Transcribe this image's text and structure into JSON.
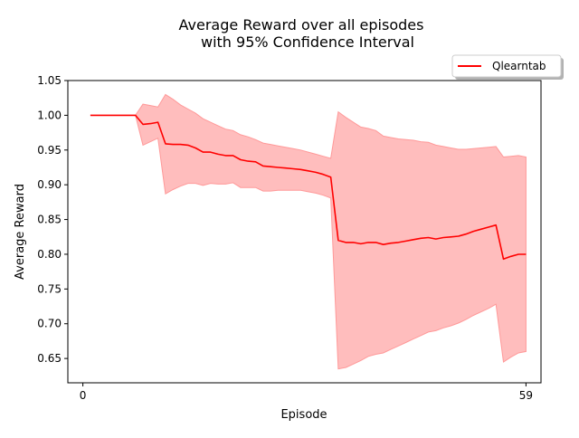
{
  "chart_data": {
    "type": "line",
    "title_line1": "Average Reward over all episodes",
    "title_line2": "with 95% Confidence Interval",
    "xlabel": "Episode",
    "ylabel": "Average Reward",
    "xlim": [
      -2,
      61
    ],
    "ylim": [
      0.615,
      1.05
    ],
    "x_ticks": [
      0,
      59
    ],
    "y_ticks": [
      0.65,
      0.7,
      0.75,
      0.8,
      0.85,
      0.9,
      0.95,
      1.0,
      1.05
    ],
    "y_tick_labels": [
      "0.65",
      "0.70",
      "0.75",
      "0.80",
      "0.85",
      "0.90",
      "0.95",
      "1.00",
      "1.05"
    ],
    "legend_position": "top-right",
    "series": [
      {
        "name": "Qlearntab",
        "color": "#ff0000",
        "band_color": "#ff9999",
        "x": [
          1,
          2,
          3,
          4,
          5,
          6,
          7,
          8,
          9,
          10,
          11,
          12,
          13,
          14,
          15,
          16,
          17,
          18,
          19,
          20,
          21,
          22,
          23,
          24,
          25,
          26,
          27,
          28,
          29,
          30,
          31,
          32,
          33,
          34,
          35,
          36,
          37,
          38,
          39,
          40,
          41,
          42,
          43,
          44,
          45,
          46,
          47,
          48,
          49,
          50,
          51,
          52,
          53,
          54,
          55,
          56,
          57,
          58,
          59
        ],
        "mean": [
          1.0,
          1.0,
          1.0,
          1.0,
          1.0,
          1.0,
          1.0,
          0.987,
          0.988,
          0.99,
          0.959,
          0.958,
          0.958,
          0.957,
          0.953,
          0.947,
          0.947,
          0.944,
          0.942,
          0.942,
          0.936,
          0.934,
          0.933,
          0.927,
          0.926,
          0.925,
          0.924,
          0.923,
          0.922,
          0.92,
          0.918,
          0.915,
          0.911,
          0.82,
          0.817,
          0.817,
          0.815,
          0.817,
          0.817,
          0.814,
          0.816,
          0.817,
          0.819,
          0.821,
          0.823,
          0.824,
          0.822,
          0.824,
          0.825,
          0.826,
          0.829,
          0.833,
          0.836,
          0.839,
          0.842,
          0.793,
          0.797,
          0.8,
          0.8
        ],
        "upper": [
          1.0,
          1.0,
          1.0,
          1.0,
          1.0,
          1.0,
          1.0,
          1.016,
          1.014,
          1.012,
          1.03,
          1.023,
          1.015,
          1.009,
          1.003,
          0.995,
          0.99,
          0.985,
          0.98,
          0.978,
          0.972,
          0.969,
          0.965,
          0.96,
          0.958,
          0.956,
          0.954,
          0.952,
          0.95,
          0.947,
          0.944,
          0.941,
          0.938,
          1.005,
          0.997,
          0.99,
          0.983,
          0.981,
          0.978,
          0.97,
          0.968,
          0.966,
          0.965,
          0.964,
          0.962,
          0.961,
          0.957,
          0.955,
          0.953,
          0.951,
          0.951,
          0.952,
          0.953,
          0.954,
          0.955,
          0.94,
          0.941,
          0.942,
          0.94
        ],
        "lower": [
          1.0,
          1.0,
          1.0,
          1.0,
          1.0,
          1.0,
          1.0,
          0.957,
          0.962,
          0.967,
          0.887,
          0.893,
          0.898,
          0.902,
          0.902,
          0.899,
          0.902,
          0.901,
          0.901,
          0.903,
          0.896,
          0.896,
          0.896,
          0.891,
          0.891,
          0.892,
          0.892,
          0.892,
          0.892,
          0.89,
          0.888,
          0.885,
          0.881,
          0.635,
          0.637,
          0.642,
          0.647,
          0.653,
          0.656,
          0.658,
          0.663,
          0.668,
          0.673,
          0.678,
          0.683,
          0.688,
          0.69,
          0.694,
          0.697,
          0.701,
          0.706,
          0.712,
          0.717,
          0.722,
          0.728,
          0.645,
          0.652,
          0.658,
          0.66
        ]
      }
    ]
  }
}
